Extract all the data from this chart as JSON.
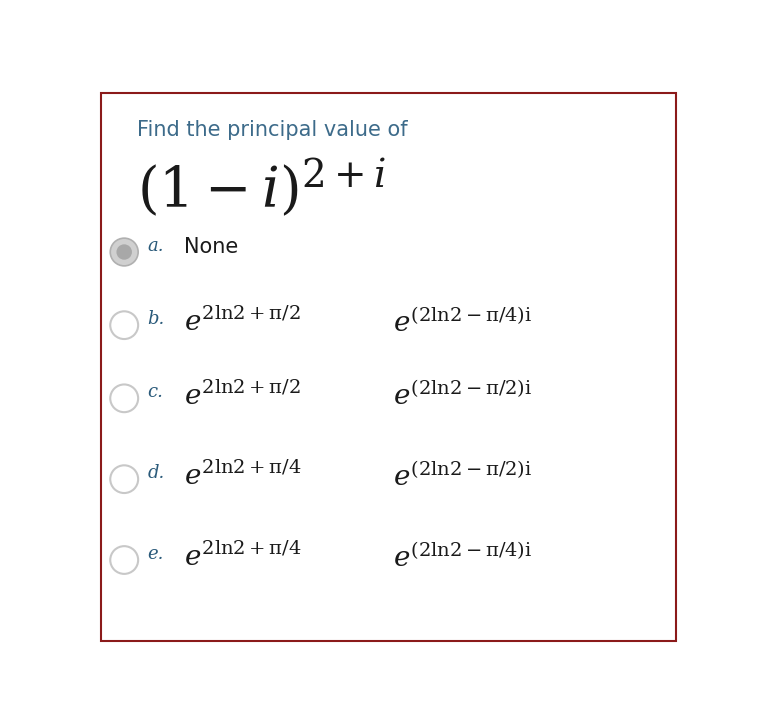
{
  "background_color": "#ffffff",
  "border_color": "#8b1a1a",
  "title_text": "Find the principal value of",
  "title_color": "#3d6b8a",
  "expr_color": "#1a1a1a",
  "label_color": "#2a5a7a",
  "radio_selected_inner": "#cccccc",
  "radio_selected_outer": "#bbbbbb",
  "radio_unselected": "#cccccc",
  "options": [
    {
      "label": "a.",
      "text": "None",
      "is_selected": true
    },
    {
      "label": "b.",
      "exp1": "2 ln 2+\\pi/2",
      "exp2": "(2 ln 2-\\pi/4)i"
    },
    {
      "label": "c.",
      "exp1": "2 ln 2+\\pi/2",
      "exp2": "(2 ln 2-\\pi/2)i"
    },
    {
      "label": "d.",
      "exp1": "2 ln 2+\\pi/4",
      "exp2": "(2 ln 2-\\pi/2)i"
    },
    {
      "label": "e.",
      "exp1": "2 ln 2+\\pi/4",
      "exp2": "(2 ln 2-\\pi/4)i"
    }
  ]
}
